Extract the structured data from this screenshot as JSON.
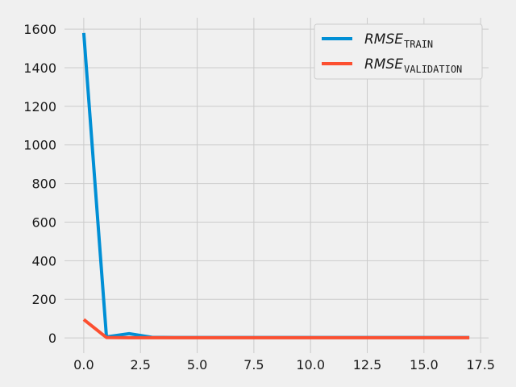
{
  "chart_data": {
    "type": "line",
    "title": "",
    "xlabel": "",
    "ylabel": "",
    "xlim": [
      -0.85,
      17.85
    ],
    "ylim": [
      -79,
      1659
    ],
    "grid": true,
    "legend_position": "top-right",
    "xticks": [
      0.0,
      2.5,
      5.0,
      7.5,
      10.0,
      12.5,
      15.0,
      17.5
    ],
    "xtick_labels": [
      "0.0",
      "2.5",
      "5.0",
      "7.5",
      "10.0",
      "12.5",
      "15.0",
      "17.5"
    ],
    "yticks": [
      0,
      200,
      400,
      600,
      800,
      1000,
      1200,
      1400,
      1600
    ],
    "ytick_labels": [
      "0",
      "200",
      "400",
      "600",
      "800",
      "1000",
      "1200",
      "1400",
      "1600"
    ],
    "x": [
      0,
      1,
      2,
      3,
      4,
      5,
      6,
      7,
      8,
      9,
      10,
      11,
      12,
      13,
      14,
      15,
      16,
      17
    ],
    "series": [
      {
        "name_main": "RMSE",
        "name_sub": "TRAIN",
        "color": "#008fd5",
        "values": [
          1580,
          5,
          22,
          3,
          2,
          2,
          2,
          2,
          2,
          2,
          2,
          2,
          2,
          2,
          2,
          2,
          2,
          2
        ]
      },
      {
        "name_main": "RMSE",
        "name_sub": "VALIDATION",
        "color": "#fc4f30",
        "values": [
          95,
          2,
          1,
          1,
          1,
          1,
          1,
          1,
          1,
          1,
          1,
          1,
          1,
          1,
          1,
          1,
          1,
          1
        ]
      }
    ]
  }
}
